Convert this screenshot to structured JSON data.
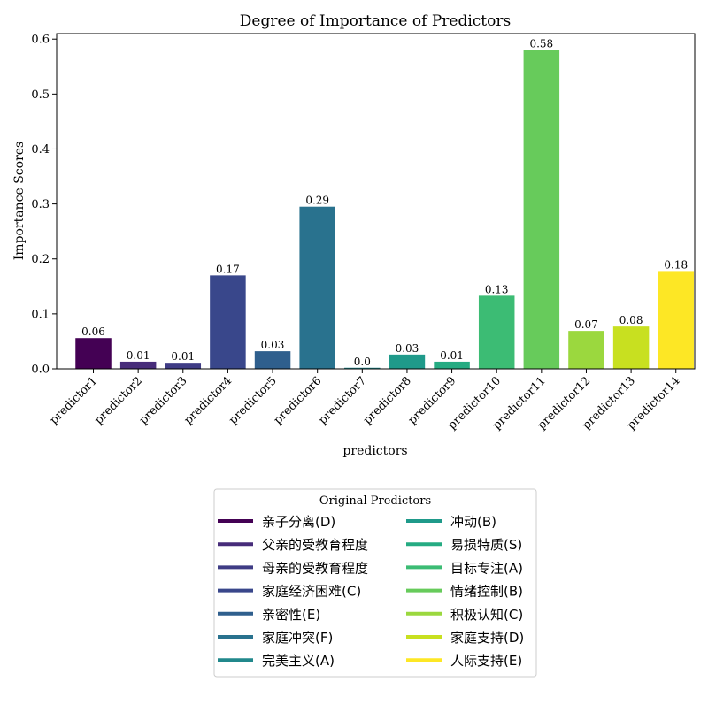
{
  "chart_data": {
    "type": "bar",
    "title": "Degree of Importance of Predictors",
    "xlabel": "predictors",
    "ylabel": "Importance Scores",
    "ylim": [
      0,
      0.61
    ],
    "yticks": [
      "0.0",
      "0.1",
      "0.2",
      "0.3",
      "0.4",
      "0.5",
      "0.6"
    ],
    "categories": [
      "predictor1",
      "predictor2",
      "predictor3",
      "predictor4",
      "predictor5",
      "predictor6",
      "predictor7",
      "predictor8",
      "predictor9",
      "predictor10",
      "predictor11",
      "predictor12",
      "predictor13",
      "predictor14"
    ],
    "values": [
      0.056,
      0.013,
      0.011,
      0.17,
      0.032,
      0.295,
      0.002,
      0.026,
      0.013,
      0.133,
      0.58,
      0.069,
      0.077,
      0.178
    ],
    "data_labels": [
      "0.06",
      "0.01",
      "0.01",
      "0.17",
      "0.03",
      "0.29",
      "0.0",
      "0.03",
      "0.01",
      "0.13",
      "0.58",
      "0.07",
      "0.08",
      "0.18"
    ],
    "colors": [
      "#440154",
      "#482475",
      "#414487",
      "#355f8d",
      "#2a788e",
      "#21918c",
      "#22a884",
      "#44bf70",
      "#7ad151",
      "#bddf26",
      "#fde725"
    ],
    "bar_colors": [
      "#440154",
      "#472c7a",
      "#3f3c85",
      "#39478b",
      "#2f5f8d",
      "#29728e",
      "#21888c",
      "#1f9a8a",
      "#25ab82",
      "#3cbc74",
      "#67cb5b",
      "#9bd83e",
      "#c8e020",
      "#fde725"
    ],
    "legend": {
      "title": "Original Predictors",
      "placement": "bottom-center",
      "entries": [
        "亲子分离(D)",
        "父亲的受教育程度",
        "母亲的受教育程度",
        "家庭经济困难(C)",
        "亲密性(E)",
        "家庭冲突(F)",
        "完美主义(A)",
        "冲动(B)",
        "易损特质(S)",
        "目标专注(A)",
        "情绪控制(B)",
        "积极认知(C)",
        "家庭支持(D)",
        "人际支持(E)"
      ]
    },
    "grid": false
  }
}
